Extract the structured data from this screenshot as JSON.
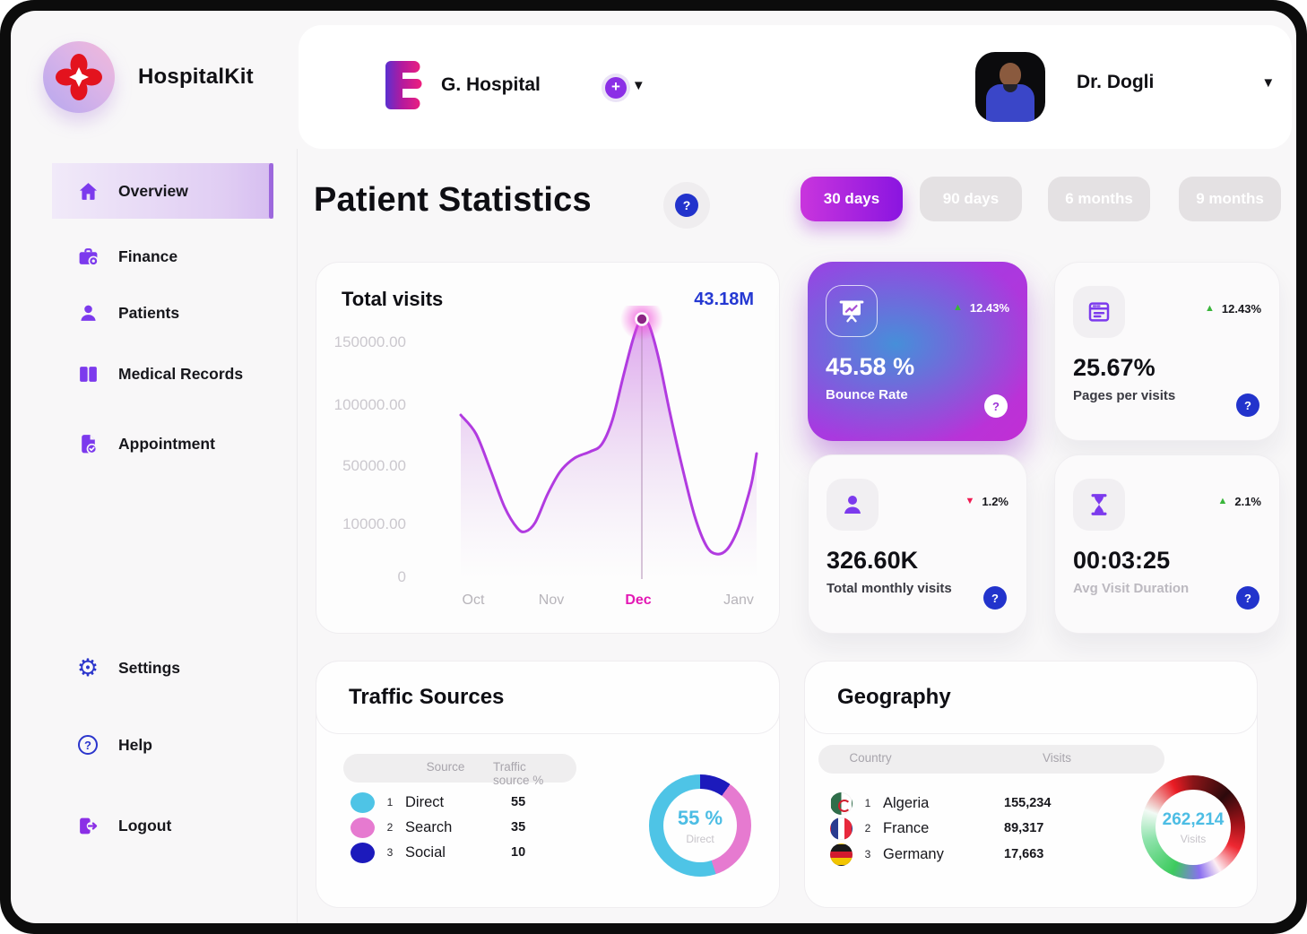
{
  "app": {
    "name": "HospitalKit"
  },
  "header": {
    "organization": "G. Hospital",
    "user_name": "Dr. Dogli"
  },
  "sidebar": {
    "items": [
      {
        "label": "Overview",
        "icon": "home-icon",
        "active": true
      },
      {
        "label": "Finance",
        "icon": "finance-icon",
        "active": false
      },
      {
        "label": "Patients",
        "icon": "patients-icon",
        "active": false
      },
      {
        "label": "Medical Records",
        "icon": "medical-records-icon",
        "active": false
      },
      {
        "label": "Appointment",
        "icon": "appointment-icon",
        "active": false
      }
    ],
    "footer_items": [
      {
        "label": "Settings",
        "icon": "gear-icon"
      },
      {
        "label": "Help",
        "icon": "help-icon"
      },
      {
        "label": "Logout",
        "icon": "logout-icon"
      }
    ]
  },
  "page": {
    "title": "Patient Statistics"
  },
  "filters": [
    {
      "label": "30 days",
      "active": true
    },
    {
      "label": "90 days",
      "active": false
    },
    {
      "label": "6 months",
      "active": false
    },
    {
      "label": "9 months",
      "active": false
    }
  ],
  "chart_data": {
    "type": "area",
    "title": "Total visits",
    "total_label": "43.18M",
    "x": [
      "Oct",
      "Nov",
      "Dec",
      "Janv"
    ],
    "values_at_labels": [
      88000,
      52000,
      165000,
      60000
    ],
    "yticks": [
      "150000.00",
      "100000.00",
      "50000.00",
      "10000.00",
      "0"
    ],
    "ylim": [
      0,
      170000
    ],
    "highlight_x": "Dec",
    "grid": false,
    "legend": false,
    "line_color": "#b13be0",
    "curve": [
      [
        41,
        122
      ],
      [
        58,
        143
      ],
      [
        74,
        183
      ],
      [
        90,
        225
      ],
      [
        104,
        248
      ],
      [
        113,
        252
      ],
      [
        124,
        242
      ],
      [
        138,
        210
      ],
      [
        152,
        185
      ],
      [
        168,
        170
      ],
      [
        185,
        163
      ],
      [
        198,
        155
      ],
      [
        210,
        128
      ],
      [
        222,
        80
      ],
      [
        233,
        38
      ],
      [
        241,
        16
      ],
      [
        245,
        15
      ],
      [
        252,
        24
      ],
      [
        262,
        60
      ],
      [
        274,
        118
      ],
      [
        288,
        180
      ],
      [
        302,
        235
      ],
      [
        315,
        268
      ],
      [
        326,
        277
      ],
      [
        338,
        272
      ],
      [
        350,
        250
      ],
      [
        360,
        218
      ],
      [
        366,
        195
      ],
      [
        371,
        165
      ]
    ],
    "marker": [
      243,
      15
    ],
    "baseline_y": 305
  },
  "stats": [
    {
      "value": "45.58 %",
      "label": "Bounce Rate",
      "delta": "12.43%",
      "trend": "up",
      "icon": "presentation-icon",
      "variant": "gradient"
    },
    {
      "value": "25.67%",
      "label": "Pages per visits",
      "delta": "12.43%",
      "trend": "up",
      "icon": "browser-icon",
      "variant": "light"
    },
    {
      "value": "326.60K",
      "label": "Total monthly visits",
      "delta": "1.2%",
      "trend": "down",
      "icon": "user-icon",
      "variant": "light"
    },
    {
      "value": "00:03:25",
      "label": "Avg Visit Duration",
      "delta": "2.1%",
      "trend": "up",
      "icon": "hourglass-icon",
      "variant": "light"
    }
  ],
  "traffic": {
    "title": "Traffic Sources",
    "columns": [
      "Source",
      "Traffic source %"
    ],
    "rows": [
      {
        "rank": "1",
        "label": "Direct",
        "value": "55",
        "color": "#4ec4e6"
      },
      {
        "rank": "2",
        "label": "Search",
        "value": "35",
        "color": "#e67ad0"
      },
      {
        "rank": "3",
        "label": "Social",
        "value": "10",
        "color": "#1c1abc"
      }
    ],
    "donut": {
      "center_value": "55 %",
      "center_label": "Direct",
      "segments": [
        {
          "label": "Direct",
          "pct": 55,
          "color": "#4ec4e6"
        },
        {
          "label": "Search",
          "pct": 35,
          "color": "#e67ad0"
        },
        {
          "label": "Social",
          "pct": 10,
          "color": "#1c1abc"
        }
      ]
    }
  },
  "geography": {
    "title": "Geography",
    "columns": [
      "Country",
      "Visits"
    ],
    "rows": [
      {
        "rank": "1",
        "country": "Algeria",
        "visits": "155,234",
        "flag": "algeria-flag-icon"
      },
      {
        "rank": "2",
        "country": "France",
        "visits": "89,317",
        "flag": "france-flag-icon"
      },
      {
        "rank": "3",
        "country": "Germany",
        "visits": "17,663",
        "flag": "germany-flag-icon"
      }
    ],
    "donut": {
      "center_value": "262,214",
      "center_label": "Visits",
      "ring_gradient": [
        "#8a1518 0deg",
        "#2d0a0c 45deg",
        "#a01218 85deg",
        "#ef2832 115deg",
        "#fdeef4 148deg",
        "#8a6ff0 172deg",
        "#3dcb5e 205deg",
        "#8fe3ac 255deg",
        "#f2faf5 290deg",
        "#ea1c24 335deg",
        "#8a1518 360deg"
      ]
    }
  },
  "colors": {
    "accent_purple": "#8b2fe6",
    "accent_blue": "#2233cc",
    "positive": "#39b53a",
    "negative": "#f01a52",
    "value_blue": "#2438d2",
    "highlight_pink": "#e318b4",
    "center_cyan": "#4cbde4"
  }
}
